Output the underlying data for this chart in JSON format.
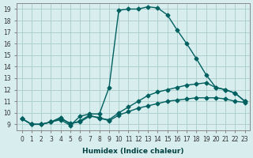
{
  "xlabel": "Humidex (Indice chaleur)",
  "ylabel": "",
  "bg_color": "#d8eeee",
  "grid_color": "#b0d0d0",
  "line_color": "#006060",
  "xlim": [
    -0.5,
    23.5
  ],
  "ylim": [
    8.5,
    19.5
  ],
  "xticks": [
    0,
    1,
    2,
    3,
    4,
    5,
    6,
    7,
    8,
    9,
    10,
    11,
    12,
    13,
    14,
    15,
    16,
    17,
    18,
    19,
    20,
    21,
    22,
    23
  ],
  "yticks": [
    9,
    10,
    11,
    12,
    13,
    14,
    15,
    16,
    17,
    18,
    19
  ],
  "series": [
    [
      0,
      9.5
    ],
    [
      1,
      9.0
    ],
    [
      2,
      9.0
    ],
    [
      3,
      9.2
    ],
    [
      4,
      9.4
    ],
    [
      5,
      8.9
    ],
    [
      6,
      9.7
    ],
    [
      7,
      9.9
    ],
    [
      8,
      9.9
    ],
    [
      9,
      12.2
    ],
    [
      10,
      18.9
    ],
    [
      11,
      19.0
    ],
    [
      12,
      19.0
    ],
    [
      13,
      19.2
    ],
    [
      14,
      19.1
    ],
    [
      15,
      18.5
    ],
    [
      16,
      17.2
    ],
    [
      17,
      16.0
    ],
    [
      18,
      14.7
    ],
    [
      19,
      13.3
    ],
    [
      20,
      12.2
    ],
    [
      21,
      12.0
    ],
    [
      22,
      11.7
    ],
    [
      23,
      11.0
    ]
  ],
  "series2": [
    [
      0,
      9.5
    ],
    [
      1,
      9.0
    ],
    [
      2,
      9.0
    ],
    [
      3,
      9.2
    ],
    [
      4,
      9.6
    ],
    [
      5,
      9.0
    ],
    [
      6,
      9.3
    ],
    [
      7,
      9.8
    ],
    [
      8,
      9.5
    ],
    [
      9,
      9.4
    ],
    [
      10,
      10.0
    ],
    [
      11,
      10.5
    ],
    [
      12,
      11.0
    ],
    [
      13,
      11.5
    ],
    [
      14,
      11.8
    ],
    [
      15,
      12.0
    ],
    [
      16,
      12.2
    ],
    [
      17,
      12.4
    ],
    [
      18,
      12.5
    ],
    [
      19,
      12.6
    ],
    [
      20,
      12.2
    ],
    [
      21,
      12.0
    ],
    [
      22,
      11.7
    ],
    [
      23,
      11.0
    ]
  ],
  "series3": [
    [
      0,
      9.5
    ],
    [
      1,
      9.0
    ],
    [
      2,
      9.0
    ],
    [
      3,
      9.2
    ],
    [
      4,
      9.5
    ],
    [
      5,
      9.1
    ],
    [
      6,
      9.2
    ],
    [
      7,
      9.7
    ],
    [
      8,
      9.6
    ],
    [
      9,
      9.3
    ],
    [
      10,
      9.8
    ],
    [
      11,
      10.1
    ],
    [
      12,
      10.4
    ],
    [
      13,
      10.6
    ],
    [
      14,
      10.8
    ],
    [
      15,
      11.0
    ],
    [
      16,
      11.1
    ],
    [
      17,
      11.2
    ],
    [
      18,
      11.3
    ],
    [
      19,
      11.3
    ],
    [
      20,
      11.3
    ],
    [
      21,
      11.2
    ],
    [
      22,
      11.0
    ],
    [
      23,
      10.9
    ]
  ]
}
